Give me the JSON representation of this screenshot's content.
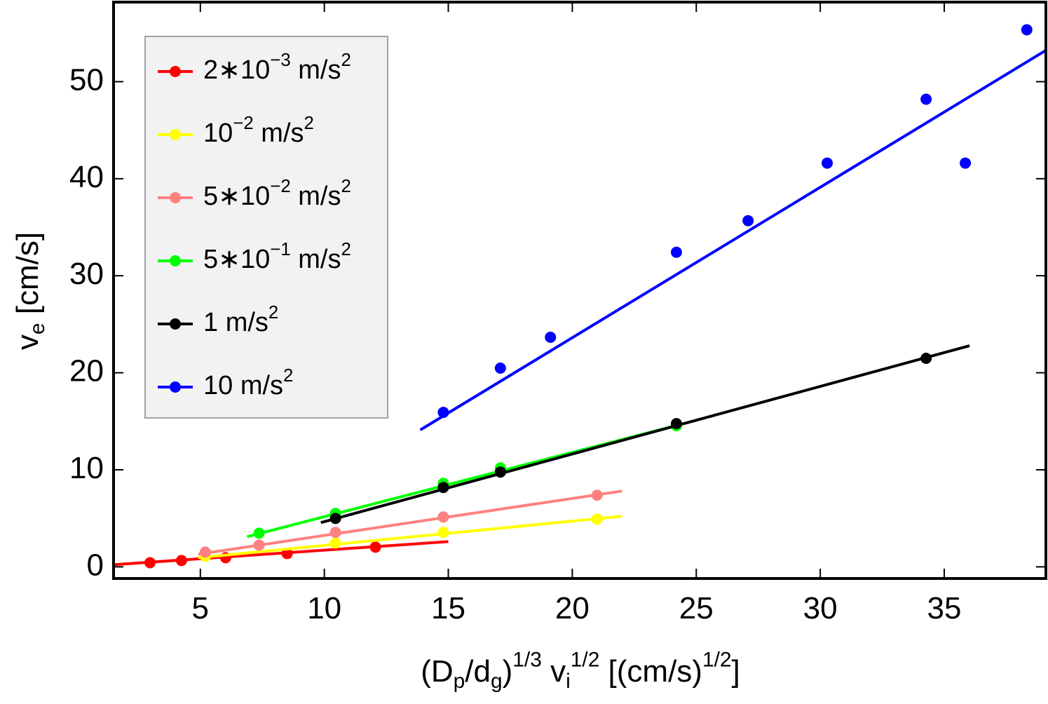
{
  "chart_data": {
    "type": "scatter",
    "xlabel": "(D_{p}/d_{g})^{1/3} v_{i}^{1/2} [(cm/s)^{1/2}]",
    "ylabel": "v_{e} [cm/s]",
    "xlim": [
      1.5,
      39.1
    ],
    "ylim": [
      -1.2,
      58.2
    ],
    "xticks": [
      5,
      10,
      15,
      20,
      25,
      30,
      35
    ],
    "yticks": [
      0,
      10,
      20,
      30,
      40,
      50
    ],
    "legend": "top-left",
    "series": [
      {
        "name": "2∗10^{−3} m/s^{2}",
        "color": "#ff0000",
        "x": [
          2.97,
          4.24,
          6.02,
          8.5,
          12.06
        ],
        "values": [
          0.43,
          0.65,
          0.94,
          1.37,
          2.03
        ],
        "fit": {
          "x": [
            1.5,
            15
          ],
          "values": [
            0.22,
            2.6
          ]
        }
      },
      {
        "name": "10^{−2} m/s^{2}",
        "color": "#ffff00",
        "x": [
          5.2,
          10.45,
          14.8,
          21.0
        ],
        "values": [
          1.09,
          2.46,
          3.55,
          4.92
        ],
        "fit": {
          "x": [
            4.92,
            22.0
          ],
          "values": [
            0.94,
            5.21
          ]
        }
      },
      {
        "name": "5∗10^{−2} m/s^{2}",
        "color": "#ff8080",
        "x": [
          5.2,
          7.37,
          10.45,
          14.8,
          21.0
        ],
        "values": [
          1.52,
          2.24,
          3.55,
          5.14,
          7.38
        ],
        "fit": {
          "x": [
            4.92,
            22.0
          ],
          "values": [
            1.3,
            7.81
          ]
        }
      },
      {
        "name": "5∗10^{−1} m/s^{2}",
        "color": "#00ff00",
        "x": [
          7.37,
          10.45,
          14.8,
          17.1,
          24.2
        ],
        "values": [
          3.47,
          5.5,
          8.61,
          10.2,
          14.54
        ],
        "fit": {
          "x": [
            6.89,
            25.03
          ],
          "values": [
            3.11,
            15.12
          ]
        }
      },
      {
        "name": "1 m/s^{2}",
        "color": "#000000",
        "x": [
          10.45,
          14.8,
          17.1,
          24.2,
          34.27
        ],
        "values": [
          4.99,
          8.18,
          9.77,
          14.76,
          21.49
        ],
        "fit": {
          "x": [
            9.86,
            36.02
          ],
          "values": [
            4.56,
            22.79
          ]
        }
      },
      {
        "name": "10 m/s^{2}",
        "color": "#0000ff",
        "x": [
          14.8,
          17.1,
          19.12,
          24.2,
          27.09,
          30.28,
          34.27,
          35.85,
          38.33
        ],
        "values": [
          15.92,
          20.48,
          23.66,
          32.42,
          35.67,
          41.61,
          48.19,
          41.61,
          55.35
        ],
        "fit": {
          "x": [
            13.87,
            39.07
          ],
          "values": [
            14.11,
            53.18
          ]
        }
      }
    ]
  }
}
